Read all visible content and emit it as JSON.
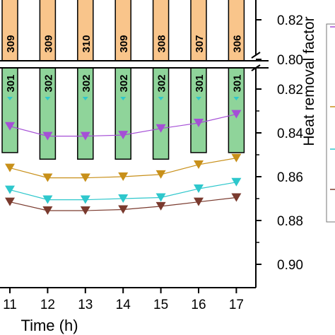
{
  "chart_data": {
    "type": "bar",
    "xlabel": "Time (h)",
    "ylabel": "Heat removal factor",
    "x": [
      11,
      12,
      13,
      14,
      15,
      16,
      17
    ],
    "x_tick_labels": [
      "11",
      "12",
      "13",
      "14",
      "15",
      "16",
      "17"
    ],
    "upper_panel": {
      "y_tick_labels": [
        "0.82",
        "0.80"
      ],
      "bars": [
        {
          "x": 11,
          "label": "309"
        },
        {
          "x": 12,
          "label": "309"
        },
        {
          "x": 13,
          "label": "310"
        },
        {
          "x": 14,
          "label": "309"
        },
        {
          "x": 15,
          "label": "308"
        },
        {
          "x": 16,
          "label": "307"
        },
        {
          "x": 17,
          "label": "306"
        }
      ],
      "bar_color": "#f9c58b"
    },
    "lower_panel": {
      "ylim": [
        0.81,
        0.91
      ],
      "inverted": true,
      "y_ticks": [
        0.82,
        0.84,
        0.86,
        0.88,
        0.9
      ],
      "y_tick_labels": [
        "0.82",
        "0.84",
        "0.86",
        "0.88",
        "0.90"
      ],
      "bars": [
        {
          "x": 11,
          "label": "301",
          "value": 0.849
        },
        {
          "x": 12,
          "label": "302",
          "value": 0.852
        },
        {
          "x": 13,
          "label": "302",
          "value": 0.852
        },
        {
          "x": 14,
          "label": "302",
          "value": 0.852
        },
        {
          "x": 15,
          "label": "302",
          "value": 0.852
        },
        {
          "x": 16,
          "label": "301",
          "value": 0.849
        },
        {
          "x": 17,
          "label": "301",
          "value": 0.849
        }
      ],
      "bar_color": "#8fd49a"
    },
    "series": [
      {
        "color": "#a54fd6",
        "values": [
          0.837,
          0.8415,
          0.8415,
          0.841,
          0.838,
          0.8355,
          0.8315
        ]
      },
      {
        "color": "#c8901a",
        "values": [
          0.856,
          0.8605,
          0.8605,
          0.86,
          0.859,
          0.8545,
          0.8515
        ]
      },
      {
        "color": "#2ec7cc",
        "values": [
          0.866,
          0.8705,
          0.8705,
          0.87,
          0.8695,
          0.8655,
          0.8625
        ]
      },
      {
        "color": "#7a3a2e",
        "values": [
          0.8715,
          0.8755,
          0.8755,
          0.875,
          0.8735,
          0.8715,
          0.8695
        ]
      }
    ],
    "legend": "right",
    "grid": false
  }
}
